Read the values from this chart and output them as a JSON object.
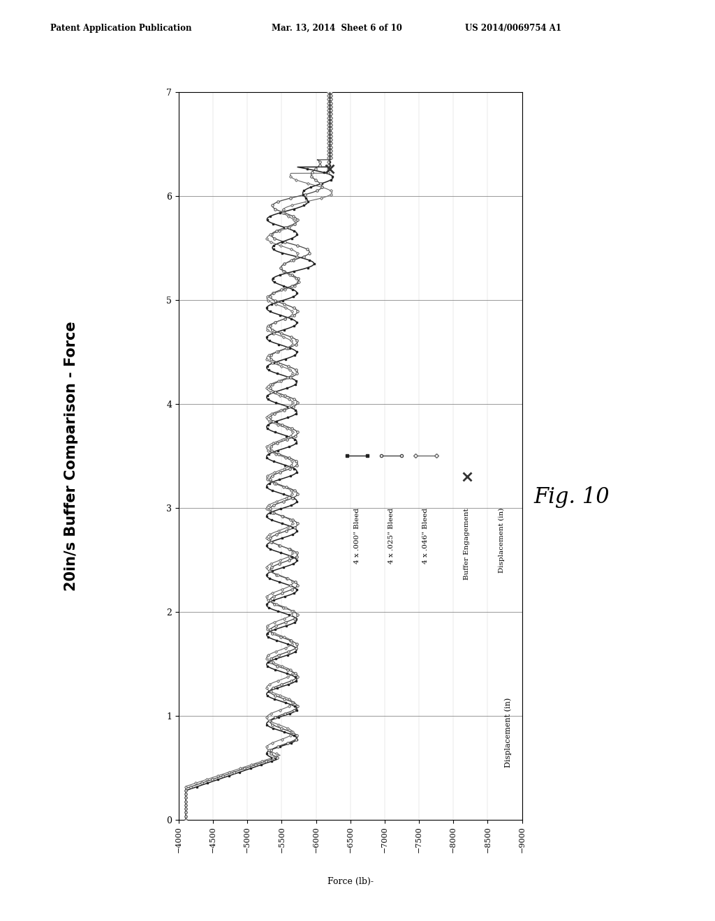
{
  "page_title_left": "Patent Application Publication",
  "page_title_mid": "Mar. 13, 2014  Sheet 6 of 10",
  "page_title_right": "US 2014/0069754 A1",
  "chart_title": "20in/s Buffer Comparison - Force",
  "x_label": "Force (lb)-",
  "y_label": "Displacement (in)",
  "force_min": -9000,
  "force_max": -4000,
  "disp_min": 0,
  "disp_max": 7,
  "force_ticks": [
    -4000,
    -4500,
    -5000,
    -5500,
    -6000,
    -6500,
    -7000,
    -7500,
    -8000,
    -8500,
    -9000
  ],
  "disp_ticks": [
    0,
    1,
    2,
    3,
    4,
    5,
    6,
    7
  ],
  "legend_entries": [
    "4 x .000\" Bleed",
    "4 x .025\" Bleed",
    "4 x .046\" Bleed",
    "Buffer Engagement",
    "Displacement (in)"
  ],
  "fig_label": "Fig. 10",
  "background_color": "#ffffff",
  "line_color": "#333333",
  "grid_color": "#888888"
}
